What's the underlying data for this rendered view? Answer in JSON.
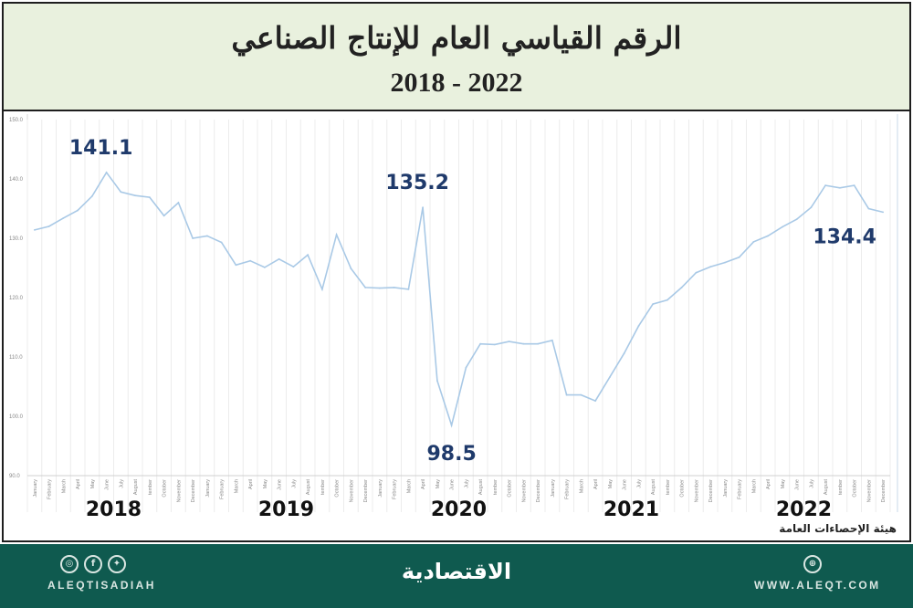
{
  "header": {
    "title": "الرقم القياسي العام للإنتاج الصناعي",
    "years": "2018 - 2022"
  },
  "source": "هيئة الإحصاءات العامة",
  "footer": {
    "social_handle": "ALEQTISADIAH",
    "logo": "الاقتصادية",
    "website": "WWW.ALEQT.COM",
    "icons": [
      "instagram-icon",
      "facebook-icon",
      "twitter-icon",
      "globe-icon"
    ]
  },
  "chart_data": {
    "type": "line",
    "ylim": [
      90,
      150
    ],
    "yticks": [
      "90.0",
      "100.0",
      "110.0",
      "120.0",
      "130.0",
      "140.0",
      "150.0"
    ],
    "months": [
      "January",
      "February",
      "March",
      "April",
      "May",
      "June",
      "July",
      "August",
      "tember",
      "October",
      "November",
      "December"
    ],
    "x_group_labels": [
      "2018",
      "2019",
      "2020",
      "2021",
      "2022"
    ],
    "line_color": "#a9c9e6",
    "label_color": "#1f3a6b",
    "series": [
      {
        "values": [
          131.4,
          132.0,
          133.4,
          134.7,
          137.1,
          141.1,
          137.8,
          137.2,
          136.9,
          133.8,
          136.0,
          130.0,
          130.4,
          129.3,
          125.5,
          126.2,
          125.1,
          126.5,
          125.2,
          127.2,
          121.4,
          130.6,
          124.9,
          121.7,
          121.6,
          121.7,
          121.4,
          135.2,
          106.0,
          98.5,
          108.2,
          112.2,
          112.1,
          112.6,
          112.2,
          112.2,
          112.8,
          103.6,
          103.6,
          102.6,
          106.6,
          110.6,
          115.2,
          118.9,
          119.6,
          121.7,
          124.2,
          125.2,
          125.9,
          126.8,
          129.4,
          130.4,
          131.9,
          133.2,
          135.2,
          138.9,
          138.5,
          138.9,
          135.0,
          134.4
        ]
      }
    ],
    "annotations": [
      {
        "text": "141.1",
        "index": 5,
        "position": "above"
      },
      {
        "text": "135.2",
        "index": 27,
        "position": "above"
      },
      {
        "text": "98.5",
        "index": 29,
        "position": "below"
      },
      {
        "text": "134.4",
        "index": 59,
        "position": "below-left"
      }
    ]
  }
}
